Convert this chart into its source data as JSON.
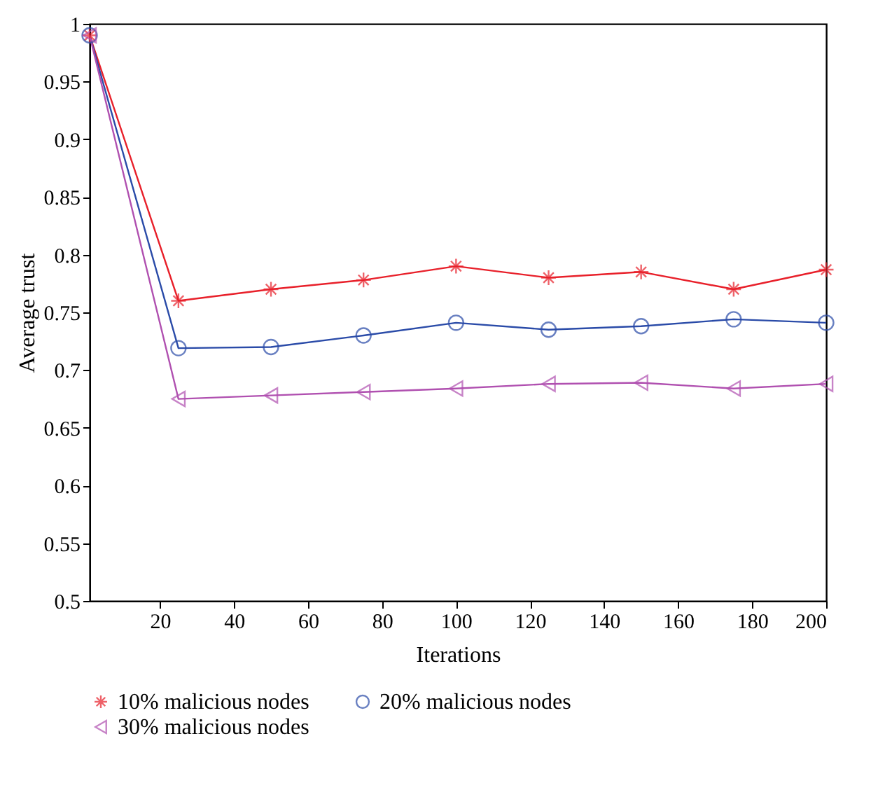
{
  "chart_data": {
    "type": "line",
    "xlabel": "Iterations",
    "ylabel": "Average trust",
    "x": [
      1,
      25,
      50,
      75,
      100,
      125,
      150,
      175,
      200
    ],
    "series": [
      {
        "name": "10% malicious nodes",
        "color": "#e8202a",
        "marker": "cross",
        "values": [
          0.99,
          0.76,
          0.77,
          0.778,
          0.79,
          0.78,
          0.785,
          0.77,
          0.787
        ]
      },
      {
        "name": "20% malicious nodes",
        "color": "#2a4ba8",
        "marker": "circle",
        "values": [
          0.99,
          0.719,
          0.72,
          0.73,
          0.741,
          0.735,
          0.738,
          0.744,
          0.741
        ]
      },
      {
        "name": "30% malicious nodes",
        "color": "#b050b0",
        "marker": "triangle",
        "values": [
          0.99,
          0.675,
          0.678,
          0.681,
          0.684,
          0.688,
          0.689,
          0.684,
          0.688
        ]
      }
    ],
    "xlim": [
      1,
      200
    ],
    "xticks": [
      20,
      40,
      60,
      80,
      100,
      120,
      140,
      160,
      180,
      200
    ],
    "ylim": [
      0.5,
      1
    ],
    "yticks": [
      0.5,
      0.55,
      0.6,
      0.65,
      0.7,
      0.75,
      0.8,
      0.85,
      0.9,
      0.95,
      1
    ],
    "grid": false,
    "legend": "bottom",
    "line_style": "solid"
  }
}
